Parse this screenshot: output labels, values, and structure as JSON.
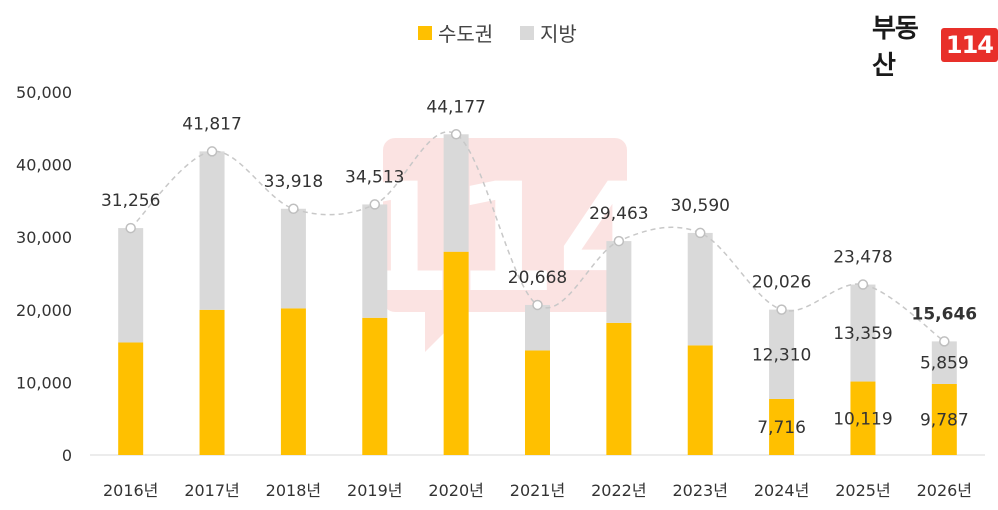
{
  "logo": {
    "text": "부동산",
    "badge": "114"
  },
  "chart_data": {
    "type": "bar",
    "stacked": true,
    "categories": [
      "2016년",
      "2017년",
      "2018년",
      "2019년",
      "2020년",
      "2021년",
      "2022년",
      "2023년",
      "2024년",
      "2025년",
      "2026년"
    ],
    "series": [
      {
        "name": "수도권",
        "color": "#FFC000",
        "values": [
          15500,
          20000,
          20200,
          18900,
          28000,
          14400,
          18200,
          15100,
          7716,
          10119,
          9787
        ],
        "labels": [
          "",
          "",
          "",
          "",
          "",
          "",
          "",
          "",
          "7,716",
          "10,119",
          "9,787"
        ]
      },
      {
        "name": "지방",
        "color": "#D9D9D9",
        "values": [
          15756,
          21817,
          13718,
          15613,
          16177,
          6268,
          11263,
          15490,
          12310,
          13359,
          5859
        ],
        "labels": [
          "",
          "",
          "",
          "",
          "",
          "",
          "",
          "",
          "12,310",
          "13,359",
          "5,859"
        ]
      }
    ],
    "totals": [
      31256,
      41817,
      33918,
      34513,
      44177,
      20668,
      29463,
      30590,
      20026,
      23478,
      15646
    ],
    "total_labels": [
      "31,256",
      "41,817",
      "33,918",
      "34,513",
      "44,177",
      "20,668",
      "29,463",
      "30,590",
      "20,026",
      "23,478",
      "15,646"
    ],
    "highlight_total_index": 10,
    "ylim": [
      0,
      50000
    ],
    "yticks": [
      0,
      10000,
      20000,
      30000,
      40000,
      50000
    ],
    "ytick_labels": [
      "0",
      "10,000",
      "20,000",
      "30,000",
      "40,000",
      "50,000"
    ],
    "total_line": {
      "style": "dashed",
      "color": "#C8C8C8",
      "marker": "circle"
    },
    "grid": false,
    "legend_position": "top-center",
    "watermark": "114"
  }
}
